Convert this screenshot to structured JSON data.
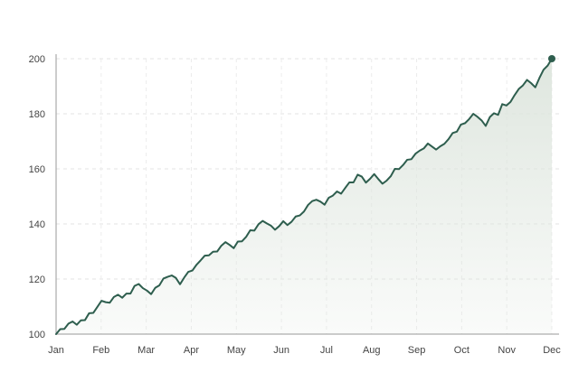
{
  "chart_data": {
    "type": "area",
    "title": "",
    "xlabel": "",
    "ylabel": "",
    "x_ticks": [
      "Jan",
      "Feb",
      "Mar",
      "Apr",
      "May",
      "Jun",
      "Jul",
      "Aug",
      "Sep",
      "Oct",
      "Nov",
      "Dec"
    ],
    "y_ticks": [
      100,
      120,
      140,
      160,
      180,
      200
    ],
    "ylim": [
      100,
      200
    ],
    "grid": true,
    "legend": "none",
    "colors": {
      "line": "#2e5e4e",
      "fill": "#dde5dd",
      "marker": "#2e5e4e"
    },
    "series": [
      {
        "values": [
          100.0,
          101.8,
          101.9,
          103.8,
          104.6,
          103.4,
          105.0,
          105.1,
          107.6,
          107.7,
          109.9,
          112.1,
          111.6,
          111.4,
          113.5,
          114.3,
          113.2,
          114.7,
          114.7,
          117.5,
          118.2,
          116.7,
          115.8,
          114.5,
          116.8,
          117.7,
          120.2,
          120.8,
          121.3,
          120.4,
          118.1,
          120.5,
          122.6,
          123.1,
          125.2,
          126.8,
          128.5,
          128.6,
          129.9,
          130.0,
          132.1,
          133.4,
          132.4,
          131.2,
          133.6,
          133.7,
          135.3,
          137.7,
          137.6,
          139.9,
          141.1,
          140.2,
          139.4,
          137.9,
          139.2,
          141.0,
          139.6,
          140.8,
          142.7,
          143.1,
          144.5,
          146.9,
          148.3,
          148.8,
          148.1,
          147.0,
          149.5,
          150.3,
          151.8,
          151.0,
          153.1,
          155.1,
          155.1,
          157.9,
          157.2,
          155.0,
          156.4,
          158.1,
          156.3,
          154.6,
          155.7,
          157.3,
          160.0,
          159.9,
          161.4,
          163.3,
          163.5,
          165.5,
          166.6,
          167.4,
          169.2,
          168.1,
          167.0,
          168.2,
          169.1,
          170.8,
          173.0,
          173.5,
          176.1,
          176.6,
          178.1,
          180.0,
          178.9,
          177.6,
          175.6,
          178.8,
          180.2,
          179.6,
          183.5,
          183.0,
          184.3,
          186.8,
          189.0,
          190.3,
          192.3,
          191.1,
          189.6,
          193.0,
          196.0,
          197.5,
          200.0
        ]
      }
    ]
  }
}
